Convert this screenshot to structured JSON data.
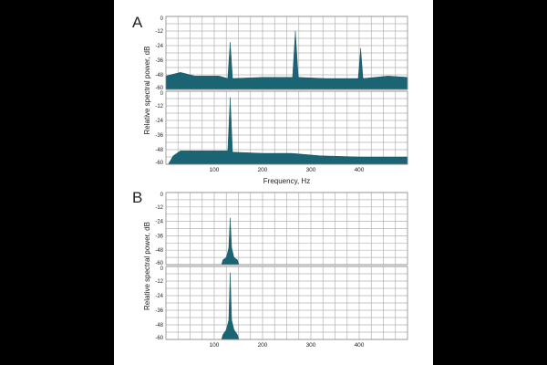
{
  "chart_data": [
    {
      "panel": "A",
      "type": "area",
      "title": "",
      "xlabel": "Frequency, Hz",
      "ylabel": "Relative spectral power, dB",
      "xlim": [
        0,
        500
      ],
      "ylim": [
        -60,
        0
      ],
      "xticks": [
        "100",
        "200",
        "300",
        "400"
      ],
      "yticks": [
        "0",
        "-12",
        "-24",
        "-36",
        "-48",
        "-60"
      ],
      "grid": true,
      "subplots": [
        {
          "series": [
            {
              "values": [
                {
                  "x": 0,
                  "y": -49
                },
                {
                  "x": 30,
                  "y": -46
                },
                {
                  "x": 60,
                  "y": -49
                },
                {
                  "x": 110,
                  "y": -49
                },
                {
                  "x": 128,
                  "y": -51
                },
                {
                  "x": 133,
                  "y": -21
                },
                {
                  "x": 138,
                  "y": -51
                },
                {
                  "x": 200,
                  "y": -50
                },
                {
                  "x": 262,
                  "y": -50
                },
                {
                  "x": 268,
                  "y": -12
                },
                {
                  "x": 274,
                  "y": -50
                },
                {
                  "x": 330,
                  "y": -51
                },
                {
                  "x": 398,
                  "y": -51
                },
                {
                  "x": 403,
                  "y": -26
                },
                {
                  "x": 408,
                  "y": -51
                },
                {
                  "x": 460,
                  "y": -49
                },
                {
                  "x": 500,
                  "y": -50
                }
              ]
            }
          ]
        },
        {
          "series": [
            {
              "values": [
                {
                  "x": 5,
                  "y": -60
                },
                {
                  "x": 15,
                  "y": -53
                },
                {
                  "x": 30,
                  "y": -49
                },
                {
                  "x": 80,
                  "y": -49
                },
                {
                  "x": 128,
                  "y": -49
                },
                {
                  "x": 133,
                  "y": -5
                },
                {
                  "x": 138,
                  "y": -50
                },
                {
                  "x": 200,
                  "y": -51
                },
                {
                  "x": 260,
                  "y": -51
                },
                {
                  "x": 320,
                  "y": -53
                },
                {
                  "x": 400,
                  "y": -54
                },
                {
                  "x": 500,
                  "y": -54
                }
              ]
            }
          ]
        }
      ]
    },
    {
      "panel": "B",
      "type": "area",
      "title": "",
      "xlabel": "",
      "ylabel": "Relative spectral power, dB",
      "xlim": [
        0,
        500
      ],
      "ylim": [
        -60,
        0
      ],
      "xticks": [
        "100",
        "200",
        "300",
        "400"
      ],
      "yticks": [
        "0",
        "-12",
        "-24",
        "-36",
        "-48",
        "-60"
      ],
      "grid": true,
      "subplots": [
        {
          "series": [
            {
              "values": [
                {
                  "x": 115,
                  "y": -60
                },
                {
                  "x": 118,
                  "y": -56
                },
                {
                  "x": 125,
                  "y": -54
                },
                {
                  "x": 130,
                  "y": -46
                },
                {
                  "x": 133,
                  "y": -21
                },
                {
                  "x": 136,
                  "y": -46
                },
                {
                  "x": 141,
                  "y": -54
                },
                {
                  "x": 148,
                  "y": -56
                },
                {
                  "x": 151,
                  "y": -60
                }
              ]
            }
          ]
        },
        {
          "series": [
            {
              "values": [
                {
                  "x": 115,
                  "y": -60
                },
                {
                  "x": 118,
                  "y": -56
                },
                {
                  "x": 125,
                  "y": -52
                },
                {
                  "x": 130,
                  "y": -44
                },
                {
                  "x": 133,
                  "y": -5
                },
                {
                  "x": 136,
                  "y": -44
                },
                {
                  "x": 141,
                  "y": -52
                },
                {
                  "x": 148,
                  "y": -56
                },
                {
                  "x": 151,
                  "y": -60
                }
              ]
            }
          ]
        }
      ]
    }
  ],
  "colors": {
    "fill": "#1a6474",
    "grid": "#b4b4b4",
    "frame": "#8a8a8a"
  }
}
